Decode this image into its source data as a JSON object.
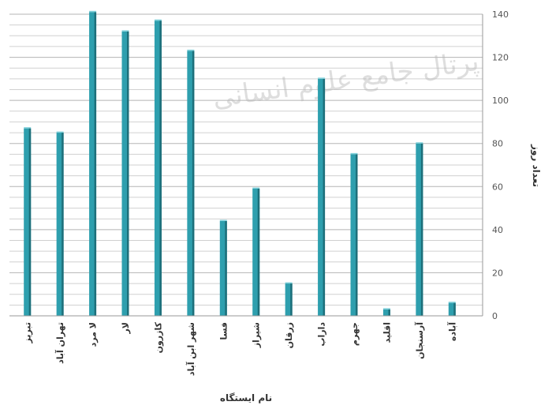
{
  "chart_data": {
    "type": "bar",
    "categories": [
      "تبریز",
      "تهران آباد",
      "لا مرد",
      "لار",
      "کازرون",
      "شهر ابن آباد",
      "فسا",
      "شیراز",
      "زرقان",
      "داراب",
      "جهرم",
      "اقلید",
      "آرسنجان",
      "آباده"
    ],
    "values": [
      87,
      85,
      141,
      132,
      137,
      123,
      44,
      59,
      15,
      110,
      75,
      3,
      80,
      6
    ],
    "xlabel": "نام ایستگاه",
    "ylabel": "تعداد روز",
    "ylim": [
      0,
      140
    ],
    "yticks": [
      0,
      20,
      40,
      60,
      80,
      100,
      120,
      140
    ],
    "grid": true,
    "bar_color": "#2e9fae",
    "bar_shade": "#1d6f7a",
    "watermark": [
      "پرتال جامع علوم انسانی"
    ]
  }
}
